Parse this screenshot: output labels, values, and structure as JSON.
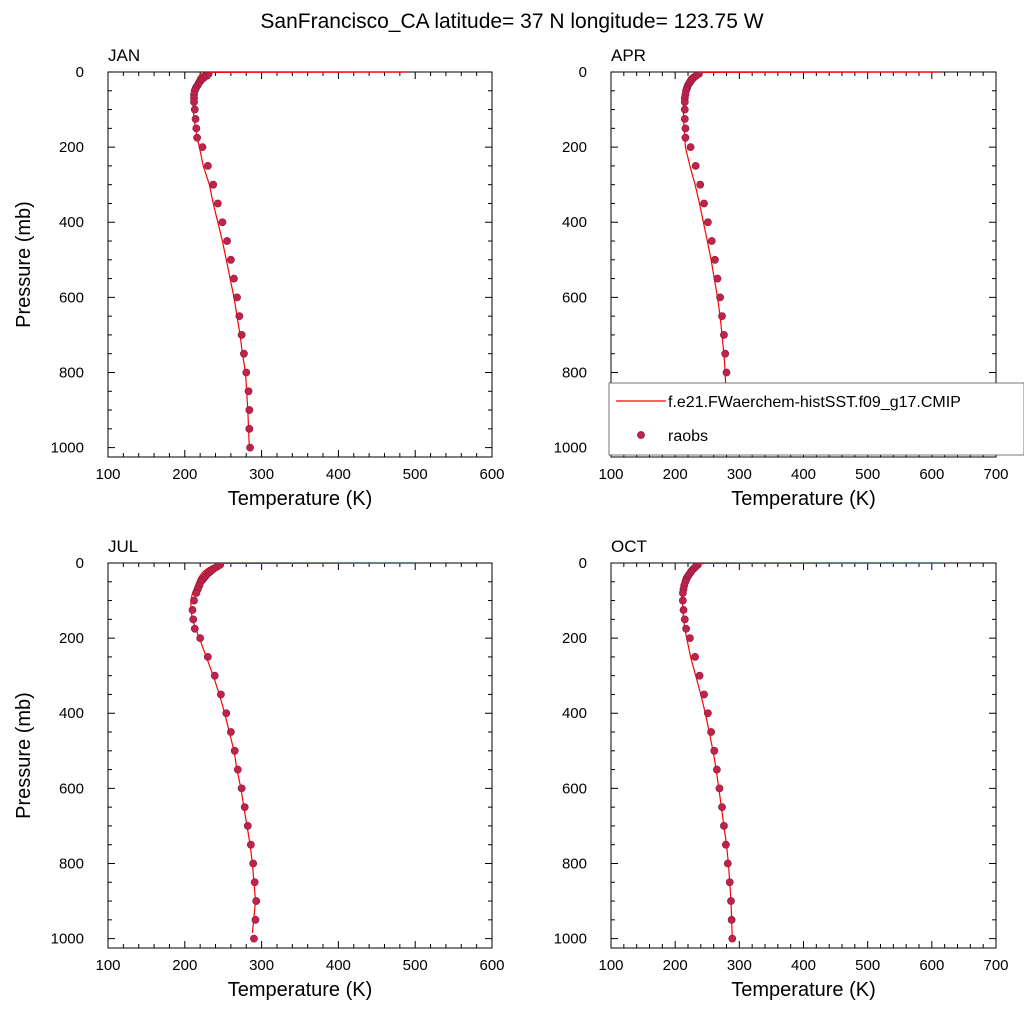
{
  "title": "SanFrancisco_CA  latitude= 37 N longitude= 123.75 W",
  "legend": {
    "model_label": "f.e21.FWaerchem-histSST.f09_g17.CMIP",
    "obs_label": "raobs",
    "placement": "APR panel, lower-right"
  },
  "colors": {
    "model_line": "#ff0000",
    "obs_marker": "#c0234a",
    "obs_marker_edge": "#8b1a3f",
    "axis": "#000000"
  },
  "chart_data": [
    {
      "type": "line",
      "panel": "JAN",
      "xlabel": "Temperature (K)",
      "ylabel": "Pressure (mb)",
      "xlim": [
        100,
        600
      ],
      "ylim": [
        0,
        1025
      ],
      "y_inverted": true,
      "xticks": [
        100,
        200,
        300,
        400,
        500,
        600
      ],
      "yticks": [
        0,
        200,
        400,
        600,
        800,
        1000
      ],
      "grid": false,
      "series": [
        {
          "name": "f.e21.FWaerchem-histSST.f09_g17.CMIP",
          "style": "line",
          "x": [
            490,
            232,
            225,
            220,
            217,
            215,
            213,
            212,
            211,
            211,
            212,
            214,
            216,
            219,
            224,
            232,
            237,
            243,
            249,
            254,
            259,
            264,
            268,
            272,
            275,
            279,
            282,
            284
          ],
          "y": [
            0.2,
            1,
            3,
            7,
            15,
            25,
            40,
            60,
            80,
            100,
            125,
            150,
            175,
            200,
            250,
            300,
            350,
            400,
            450,
            500,
            550,
            600,
            650,
            700,
            750,
            800,
            900,
            1000
          ]
        },
        {
          "name": "raobs",
          "style": "markers",
          "x": [
            231,
            229,
            225,
            222,
            220,
            218,
            217,
            215,
            214,
            213,
            212,
            212,
            212,
            213,
            214,
            215,
            216,
            223,
            230,
            237,
            243,
            249,
            255,
            260,
            264,
            268,
            271,
            274,
            277,
            280,
            283,
            284,
            284,
            285
          ],
          "y": [
            5,
            10,
            15,
            20,
            25,
            30,
            35,
            40,
            45,
            50,
            60,
            70,
            80,
            100,
            125,
            150,
            175,
            200,
            250,
            300,
            350,
            400,
            450,
            500,
            550,
            600,
            650,
            700,
            750,
            800,
            850,
            900,
            950,
            1000
          ]
        }
      ]
    },
    {
      "type": "line",
      "panel": "APR",
      "xlabel": "Temperature (K)",
      "ylabel": "",
      "xlim": [
        100,
        700
      ],
      "ylim": [
        0,
        1025
      ],
      "y_inverted": true,
      "xticks": [
        100,
        200,
        300,
        400,
        500,
        600,
        700
      ],
      "yticks": [
        0,
        200,
        400,
        600,
        800,
        1000
      ],
      "grid": false,
      "series": [
        {
          "name": "f.e21.FWaerchem-histSST.f09_g17.CMIP",
          "style": "line",
          "x": [
            610,
            240,
            232,
            226,
            221,
            218,
            216,
            214,
            213,
            213,
            213,
            214,
            215,
            216,
            223,
            231,
            238,
            244,
            250,
            256,
            261,
            266,
            270,
            273,
            276,
            278,
            280,
            282
          ],
          "y": [
            0.2,
            1,
            3,
            7,
            15,
            25,
            40,
            60,
            80,
            100,
            125,
            150,
            175,
            200,
            250,
            300,
            350,
            400,
            450,
            500,
            550,
            600,
            650,
            700,
            750,
            800,
            900,
            1000
          ]
        },
        {
          "name": "raobs",
          "style": "markers",
          "x": [
            237,
            233,
            229,
            226,
            224,
            222,
            220,
            219,
            218,
            217,
            216,
            215,
            215,
            215,
            215,
            216,
            216,
            224,
            232,
            239,
            245,
            251,
            257,
            262,
            266,
            270,
            273,
            276,
            278,
            280,
            281,
            282,
            283,
            284
          ],
          "y": [
            5,
            10,
            15,
            20,
            25,
            30,
            35,
            40,
            45,
            50,
            60,
            70,
            80,
            100,
            125,
            150,
            175,
            200,
            250,
            300,
            350,
            400,
            450,
            500,
            550,
            600,
            650,
            700,
            750,
            800,
            850,
            900,
            950,
            1000
          ]
        }
      ]
    },
    {
      "type": "line",
      "panel": "JUL",
      "xlabel": "Temperature (K)",
      "ylabel": "Pressure (mb)",
      "xlim": [
        100,
        600
      ],
      "ylim": [
        0,
        1025
      ],
      "y_inverted": true,
      "xticks": [
        100,
        200,
        300,
        400,
        500,
        600
      ],
      "yticks": [
        0,
        200,
        400,
        600,
        800,
        1000
      ],
      "grid": false,
      "series": [
        {
          "name": "f.e21.FWaerchem-histSST.f09_g17.CMIP",
          "style": "line",
          "x": [
            500,
            252,
            244,
            236,
            229,
            223,
            218,
            214,
            210,
            208,
            208,
            210,
            214,
            219,
            228,
            237,
            245,
            252,
            258,
            264,
            268,
            273,
            277,
            281,
            285,
            288,
            292,
            288
          ],
          "y": [
            0.2,
            1,
            3,
            7,
            15,
            25,
            40,
            60,
            80,
            100,
            125,
            150,
            175,
            200,
            250,
            300,
            350,
            400,
            450,
            500,
            550,
            600,
            650,
            700,
            750,
            800,
            900,
            985
          ]
        },
        {
          "name": "raobs",
          "style": "markers",
          "x": [
            246,
            242,
            238,
            235,
            232,
            229,
            227,
            225,
            223,
            221,
            219,
            217,
            215,
            212,
            210,
            211,
            213,
            220,
            230,
            239,
            247,
            254,
            260,
            265,
            269,
            274,
            278,
            282,
            286,
            289,
            291,
            293,
            292,
            290
          ],
          "y": [
            5,
            10,
            15,
            20,
            25,
            30,
            35,
            40,
            45,
            50,
            60,
            70,
            80,
            100,
            125,
            150,
            175,
            200,
            250,
            300,
            350,
            400,
            450,
            500,
            550,
            600,
            650,
            700,
            750,
            800,
            850,
            900,
            950,
            1000
          ]
        }
      ]
    },
    {
      "type": "line",
      "panel": "OCT",
      "xlabel": "Temperature (K)",
      "ylabel": "",
      "xlim": [
        100,
        700
      ],
      "ylim": [
        0,
        1025
      ],
      "y_inverted": true,
      "xticks": [
        100,
        200,
        300,
        400,
        500,
        600,
        700
      ],
      "yticks": [
        0,
        200,
        400,
        600,
        800,
        1000
      ],
      "grid": false,
      "series": [
        {
          "name": "f.e21.FWaerchem-histSST.f09_g17.CMIP",
          "style": "line",
          "x": [
            620,
            245,
            236,
            229,
            224,
            220,
            217,
            214,
            212,
            211,
            212,
            213,
            215,
            218,
            224,
            232,
            240,
            247,
            253,
            259,
            264,
            268,
            272,
            276,
            280,
            283,
            287,
            289
          ],
          "y": [
            0.2,
            1,
            3,
            7,
            15,
            25,
            40,
            60,
            80,
            100,
            125,
            150,
            175,
            200,
            250,
            300,
            350,
            400,
            450,
            500,
            550,
            600,
            650,
            700,
            750,
            800,
            900,
            1000
          ]
        },
        {
          "name": "raobs",
          "style": "markers",
          "x": [
            235,
            232,
            229,
            226,
            224,
            222,
            220,
            218,
            217,
            216,
            214,
            213,
            212,
            212,
            213,
            215,
            217,
            223,
            231,
            238,
            245,
            251,
            256,
            261,
            265,
            269,
            273,
            276,
            279,
            282,
            285,
            287,
            288,
            289
          ],
          "y": [
            5,
            10,
            15,
            20,
            25,
            30,
            35,
            40,
            45,
            50,
            60,
            70,
            80,
            100,
            125,
            150,
            175,
            200,
            250,
            300,
            350,
            400,
            450,
            500,
            550,
            600,
            650,
            700,
            750,
            800,
            850,
            900,
            950,
            1000
          ]
        }
      ]
    }
  ]
}
